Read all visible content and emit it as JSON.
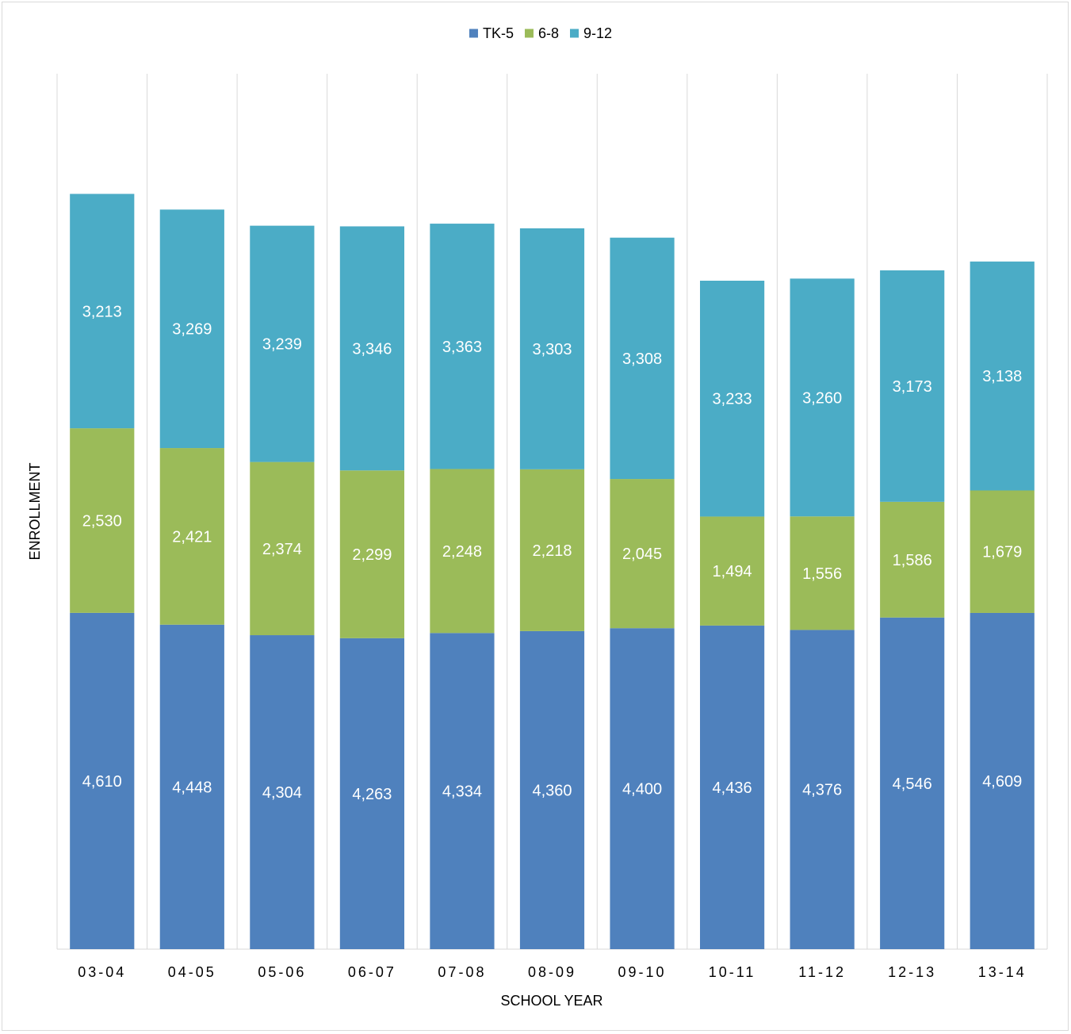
{
  "chart_data": {
    "type": "bar",
    "stacked": true,
    "title": "",
    "xlabel": "SCHOOL YEAR",
    "ylabel": "ENROLLMENT",
    "categories": [
      "03-04",
      "04-05",
      "05-06",
      "06-07",
      "07-08",
      "08-09",
      "09-10",
      "10-11",
      "11-12",
      "12-13",
      "13-14"
    ],
    "series": [
      {
        "name": "TK-5",
        "color": "#4f81bd",
        "values": [
          4610,
          4448,
          4304,
          4263,
          4334,
          4360,
          4400,
          4436,
          4376,
          4546,
          4609
        ]
      },
      {
        "name": "6-8",
        "color": "#9bbb59",
        "values": [
          2530,
          2421,
          2374,
          2299,
          2248,
          2218,
          2045,
          1494,
          1556,
          1586,
          1679
        ]
      },
      {
        "name": "9-12",
        "color": "#4bacc6",
        "values": [
          3213,
          3269,
          3239,
          3346,
          3363,
          3303,
          3308,
          3233,
          3260,
          3173,
          3138
        ]
      }
    ],
    "data_labels": [
      [
        "4,610",
        "4,448",
        "4,304",
        "4,263",
        "4,334",
        "4,360",
        "4,400",
        "4,436",
        "4,376",
        "4,546",
        "4,609"
      ],
      [
        "2,530",
        "2,421",
        "2,374",
        "2,299",
        "2,248",
        "2,218",
        "2,045",
        "1,494",
        "1,556",
        "1,586",
        "1,679"
      ],
      [
        "3,213",
        "3,269",
        "3,239",
        "3,346",
        "3,363",
        "3,303",
        "3,308",
        "3,233",
        "3,260",
        "3,173",
        "3,138"
      ]
    ],
    "ylim": [
      0,
      12000
    ],
    "y_axis_labels_shown": false,
    "grid": "vertical category separators",
    "legend_position": "top"
  }
}
